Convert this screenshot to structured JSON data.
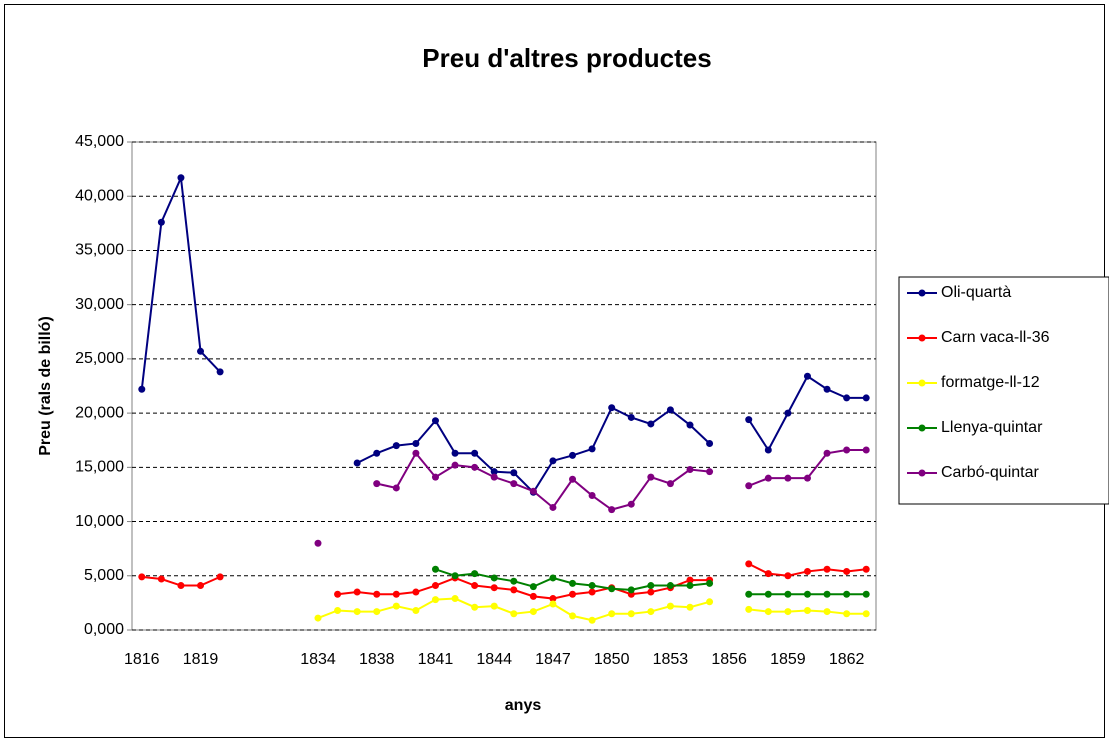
{
  "chart_data": {
    "type": "line",
    "title": "Preu d'altres productes",
    "x_label": "anys",
    "y_label": "Preu (rals de billó)",
    "categories": [
      "1816",
      null,
      null,
      "1819",
      null,
      null,
      null,
      null,
      null,
      "1834",
      null,
      null,
      "1838",
      null,
      null,
      "1841",
      null,
      null,
      "1844",
      null,
      null,
      "1847",
      null,
      null,
      "1850",
      null,
      null,
      "1853",
      null,
      null,
      "1856",
      null,
      null,
      "1859",
      null,
      null,
      "1862",
      null
    ],
    "series": [
      {
        "name": "Oli-quartà",
        "color": "#000080",
        "values": [
          22.2,
          37.6,
          41.7,
          25.7,
          23.8,
          null,
          null,
          null,
          null,
          null,
          null,
          15.4,
          16.3,
          17.0,
          17.2,
          19.3,
          16.3,
          16.3,
          14.6,
          14.5,
          12.7,
          15.6,
          16.1,
          16.7,
          20.5,
          19.6,
          19.0,
          20.3,
          18.9,
          17.2,
          null,
          19.4,
          16.6,
          20.0,
          23.4,
          22.2,
          21.4,
          21.4
        ]
      },
      {
        "name": "Carn vaca-ll-36",
        "color": "#ff0000",
        "values": [
          4.9,
          4.7,
          4.1,
          4.1,
          4.9,
          null,
          null,
          null,
          null,
          null,
          3.3,
          3.5,
          3.3,
          3.3,
          3.5,
          4.1,
          4.8,
          4.1,
          3.9,
          3.7,
          3.1,
          2.9,
          3.3,
          3.5,
          3.9,
          3.3,
          3.5,
          3.9,
          4.6,
          4.6,
          null,
          6.1,
          5.2,
          5.0,
          5.4,
          5.6,
          5.4,
          5.6
        ]
      },
      {
        "name": "formatge-ll-12",
        "color": "#ffff00",
        "values": [
          null,
          null,
          null,
          null,
          null,
          null,
          null,
          null,
          null,
          1.1,
          1.8,
          1.7,
          1.7,
          2.2,
          1.8,
          2.8,
          2.9,
          2.1,
          2.2,
          1.5,
          1.7,
          2.4,
          1.3,
          0.9,
          1.5,
          1.5,
          1.7,
          2.2,
          2.1,
          2.6,
          null,
          1.9,
          1.7,
          1.7,
          1.8,
          1.7,
          1.5,
          1.5
        ]
      },
      {
        "name": "Llenya-quintar",
        "color": "#008000",
        "values": [
          null,
          null,
          null,
          null,
          null,
          null,
          null,
          null,
          null,
          null,
          null,
          null,
          null,
          null,
          null,
          5.6,
          5.0,
          5.2,
          4.8,
          4.5,
          4.0,
          4.8,
          4.3,
          4.1,
          3.8,
          3.7,
          4.1,
          4.1,
          4.1,
          4.3,
          null,
          3.3,
          3.3,
          3.3,
          3.3,
          3.3,
          3.3,
          3.3
        ]
      },
      {
        "name": "Carbó-quintar",
        "color": "#800080",
        "values": [
          null,
          null,
          null,
          null,
          null,
          null,
          null,
          null,
          null,
          8.0,
          null,
          null,
          13.5,
          13.1,
          16.3,
          14.1,
          15.2,
          15.0,
          14.1,
          13.5,
          12.8,
          11.3,
          13.9,
          12.4,
          11.1,
          11.6,
          14.1,
          13.5,
          14.8,
          14.6,
          null,
          13.3,
          14.0,
          14.0,
          14.0,
          16.3,
          16.6,
          16.6
        ]
      }
    ],
    "ylim": [
      0,
      45
    ],
    "yticks": [
      {
        "value": 0,
        "label": "0,000"
      },
      {
        "value": 5,
        "label": "5,000"
      },
      {
        "value": 10,
        "label": "10,000"
      },
      {
        "value": 15,
        "label": "15,000"
      },
      {
        "value": 20,
        "label": "20,000"
      },
      {
        "value": 25,
        "label": "25,000"
      },
      {
        "value": 30,
        "label": "30,000"
      },
      {
        "value": 35,
        "label": "35,000"
      },
      {
        "value": 40,
        "label": "40,000"
      },
      {
        "value": 45,
        "label": "45,000"
      }
    ],
    "grid": true,
    "legend": "right"
  }
}
